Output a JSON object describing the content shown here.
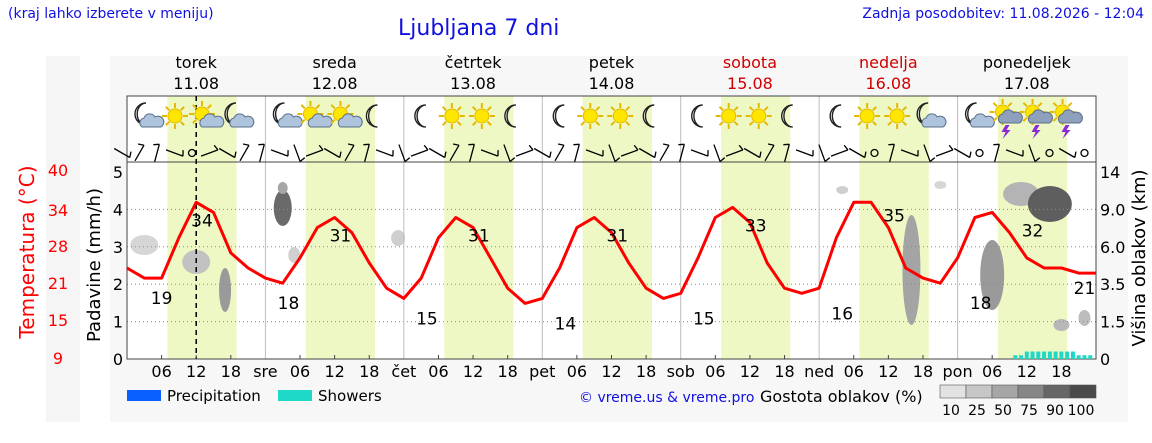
{
  "header": {
    "hint": "(kraj lahko izberete v meniju)",
    "title": "Ljubljana 7 dni",
    "updated": "Zadnja posodobitev: 11.08.2026 - 12:04"
  },
  "days": [
    {
      "name": "torek",
      "date": "11.08",
      "weekend": false,
      "abbr": ""
    },
    {
      "name": "sreda",
      "date": "12.08",
      "weekend": false,
      "abbr": "sre"
    },
    {
      "name": "četrtek",
      "date": "13.08",
      "weekend": false,
      "abbr": "čet"
    },
    {
      "name": "petek",
      "date": "14.08",
      "weekend": false,
      "abbr": "pet"
    },
    {
      "name": "sobota",
      "date": "15.08",
      "weekend": true,
      "abbr": "sob"
    },
    {
      "name": "nedelja",
      "date": "16.08",
      "weekend": true,
      "abbr": "ned"
    },
    {
      "name": "ponedeljek",
      "date": "17.08",
      "weekend": false,
      "abbr": "pon"
    }
  ],
  "hour_ticks": [
    "06",
    "12",
    "18"
  ],
  "weather_icons": [
    [
      "moon-cloud",
      "sun",
      "sun-cloud",
      "moon-cloud"
    ],
    [
      "moon-cloud",
      "sun-cloud",
      "sun-cloud",
      "moon"
    ],
    [
      "moon",
      "sun",
      "sun",
      "moon"
    ],
    [
      "moon",
      "sun",
      "sun",
      "moon"
    ],
    [
      "moon",
      "sun",
      "sun",
      "moon"
    ],
    [
      "moon",
      "sun",
      "sun",
      "moon-cloud"
    ],
    [
      "moon-cloud",
      "storm",
      "storm",
      "storm"
    ]
  ],
  "chart_data": {
    "type": "line",
    "title": "Ljubljana 7 dni",
    "ylabel_left_temp": "Temperatura (°C)",
    "ylabel_left_precip": "Padavine (mm/h)",
    "ylabel_right": "Višina oblakov (km)",
    "temp_ticks": [
      40,
      34,
      28,
      21,
      15,
      9
    ],
    "precip_ticks": [
      5,
      4,
      3,
      2,
      1,
      0
    ],
    "cloud_height_ticks": [
      "14",
      "9.0",
      "6.0",
      "3.5",
      "1.5",
      "0"
    ],
    "temperature_series": {
      "name": "Temperatura",
      "color": "#ff0000",
      "hours": [
        0,
        3,
        6,
        9,
        12,
        15,
        18,
        21,
        24,
        27,
        30,
        33,
        36,
        39,
        42,
        45,
        48,
        51,
        54,
        57,
        60,
        63,
        66,
        69,
        72,
        75,
        78,
        81,
        84,
        87,
        90,
        93,
        96,
        99,
        102,
        105,
        108,
        111,
        114,
        117,
        120,
        123,
        126,
        129,
        132,
        135,
        138,
        141,
        144,
        147,
        150,
        153,
        156,
        159,
        162,
        165,
        168
      ],
      "values": [
        21,
        19,
        19,
        27,
        34,
        32,
        24,
        21,
        19,
        18,
        23,
        29,
        31,
        28,
        22,
        17,
        15,
        19,
        27,
        31,
        29,
        23,
        17,
        14,
        15,
        21,
        29,
        31,
        28,
        22,
        17,
        15,
        16,
        23,
        31,
        33,
        30,
        22,
        17,
        16,
        17,
        27,
        34,
        34,
        29,
        21,
        19,
        18,
        23,
        31,
        32,
        28,
        23,
        21,
        21,
        20,
        20
      ]
    },
    "temp_labels": [
      {
        "hour": 6,
        "value": "19"
      },
      {
        "hour": 13,
        "value": "34"
      },
      {
        "hour": 28,
        "value": "18"
      },
      {
        "hour": 37,
        "value": "31"
      },
      {
        "hour": 52,
        "value": "15"
      },
      {
        "hour": 61,
        "value": "31"
      },
      {
        "hour": 76,
        "value": "14"
      },
      {
        "hour": 85,
        "value": "31"
      },
      {
        "hour": 100,
        "value": "15"
      },
      {
        "hour": 109,
        "value": "33"
      },
      {
        "hour": 124,
        "value": "16"
      },
      {
        "hour": 133,
        "value": "35"
      },
      {
        "hour": 148,
        "value": "18"
      },
      {
        "hour": 157,
        "value": "32"
      },
      {
        "hour": 166,
        "value": "21"
      }
    ],
    "showers": {
      "hours": [
        154,
        155,
        156,
        157,
        158,
        159,
        160,
        161,
        162,
        163,
        164,
        165,
        166,
        167
      ],
      "values": [
        0.1,
        0.1,
        0.2,
        0.2,
        0.2,
        0.2,
        0.2,
        0.2,
        0.2,
        0.2,
        0.2,
        0.1,
        0.1,
        0.1
      ]
    },
    "now_hour": 12,
    "legend": {
      "precipitation": "Precipitation",
      "precipitation_color": "#0a5fff",
      "showers": "Showers",
      "showers_color": "#1ed9c8",
      "copyright": "© vreme.us & vreme.pro",
      "cloud_density_title": "Gostota oblakov (%)",
      "cloud_density_steps": [
        "10",
        "25",
        "50",
        "75",
        "90",
        "100"
      ]
    }
  }
}
